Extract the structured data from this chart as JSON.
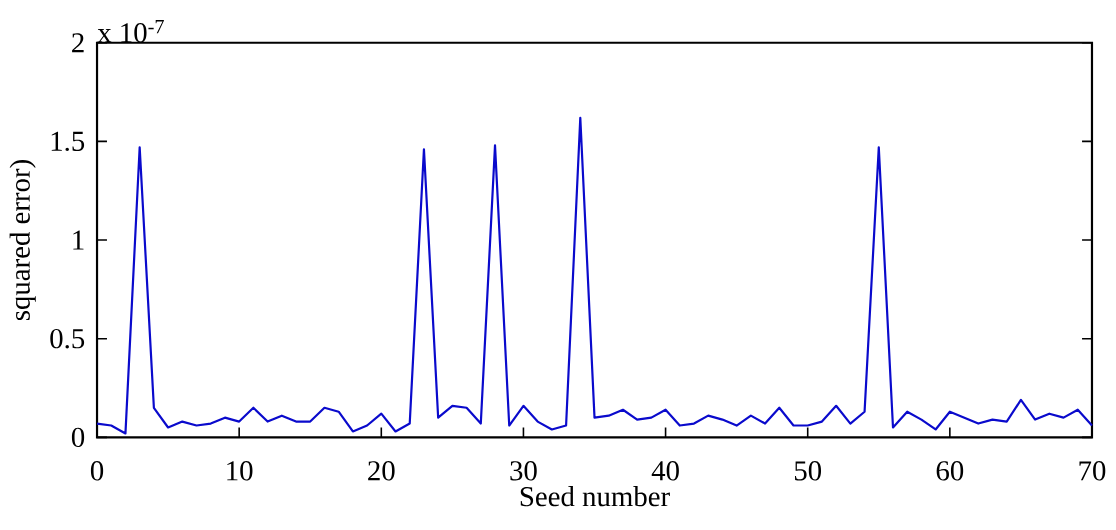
{
  "chart_data": {
    "type": "line",
    "xlabel": "Seed number",
    "ylabel": "squared error)",
    "annotations": [
      "x 10$^{-7}$"
    ],
    "x": [
      0,
      1,
      2,
      3,
      4,
      5,
      6,
      7,
      8,
      9,
      10,
      11,
      12,
      13,
      14,
      15,
      16,
      17,
      18,
      19,
      20,
      21,
      22,
      23,
      24,
      25,
      26,
      27,
      28,
      29,
      30,
      31,
      32,
      33,
      34,
      35,
      36,
      37,
      38,
      39,
      40,
      41,
      42,
      43,
      44,
      45,
      46,
      47,
      48,
      49,
      50,
      51,
      52,
      53,
      54,
      55,
      56,
      57,
      58,
      59,
      60,
      61,
      62,
      63,
      64,
      65,
      66,
      67,
      68,
      69,
      70
    ],
    "series": [
      {
        "color": "#0a0acc",
        "values": [
          0.07,
          0.06,
          0.02,
          1.47,
          0.15,
          0.05,
          0.08,
          0.06,
          0.07,
          0.1,
          0.08,
          0.15,
          0.08,
          0.11,
          0.08,
          0.08,
          0.15,
          0.13,
          0.03,
          0.06,
          0.12,
          0.03,
          0.07,
          1.46,
          0.1,
          0.16,
          0.15,
          0.07,
          1.48,
          0.06,
          0.16,
          0.08,
          0.04,
          0.06,
          1.62,
          0.1,
          0.11,
          0.14,
          0.09,
          0.1,
          0.14,
          0.06,
          0.07,
          0.11,
          0.09,
          0.06,
          0.11,
          0.07,
          0.15,
          0.06,
          0.06,
          0.08,
          0.16,
          0.07,
          0.13,
          1.47,
          0.05,
          0.13,
          0.09,
          0.04,
          0.13,
          0.1,
          0.07,
          0.09,
          0.08,
          0.19,
          0.09,
          0.12,
          0.1,
          0.14,
          0.06
        ]
      }
    ],
    "xlim": [
      0,
      70
    ],
    "ylim": [
      0,
      2
    ],
    "xticks": [
      0,
      10,
      20,
      30,
      40,
      50,
      60,
      70
    ],
    "yticks": [
      0,
      0.5,
      1,
      1.5,
      2
    ],
    "grid": false,
    "marker": "none",
    "line_style": "solid"
  }
}
